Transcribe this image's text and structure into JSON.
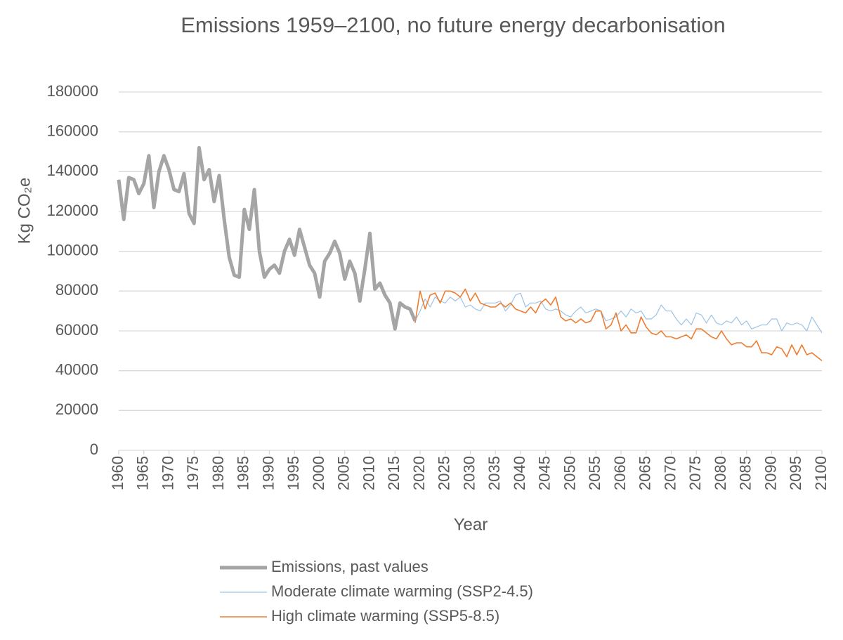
{
  "chart_data": {
    "type": "line",
    "title": "Emissions 1959–2100, no future energy decarbonisation",
    "x_label": "Year",
    "y_label": "Kg CO₂e",
    "x": [
      1960,
      1961,
      1962,
      1963,
      1964,
      1965,
      1966,
      1967,
      1968,
      1969,
      1970,
      1971,
      1972,
      1973,
      1974,
      1975,
      1976,
      1977,
      1978,
      1979,
      1980,
      1981,
      1982,
      1983,
      1984,
      1985,
      1986,
      1987,
      1988,
      1989,
      1990,
      1991,
      1992,
      1993,
      1994,
      1995,
      1996,
      1997,
      1998,
      1999,
      2000,
      2001,
      2002,
      2003,
      2004,
      2005,
      2006,
      2007,
      2008,
      2009,
      2010,
      2011,
      2012,
      2013,
      2014,
      2015,
      2016,
      2017,
      2018,
      2019,
      2020,
      2021,
      2022,
      2023,
      2024,
      2025,
      2026,
      2027,
      2028,
      2029,
      2030,
      2031,
      2032,
      2033,
      2034,
      2035,
      2036,
      2037,
      2038,
      2039,
      2040,
      2041,
      2042,
      2043,
      2044,
      2045,
      2046,
      2047,
      2048,
      2049,
      2050,
      2051,
      2052,
      2053,
      2054,
      2055,
      2056,
      2057,
      2058,
      2059,
      2060,
      2061,
      2062,
      2063,
      2064,
      2065,
      2066,
      2067,
      2068,
      2069,
      2070,
      2071,
      2072,
      2073,
      2074,
      2075,
      2076,
      2077,
      2078,
      2079,
      2080,
      2081,
      2082,
      2083,
      2084,
      2085,
      2086,
      2087,
      2088,
      2089,
      2090,
      2091,
      2092,
      2093,
      2094,
      2095,
      2096,
      2097,
      2098,
      2099,
      2100
    ],
    "xlim": [
      1960,
      2100
    ],
    "xticks": [
      1960,
      1965,
      1970,
      1975,
      1980,
      1985,
      1990,
      1995,
      2000,
      2005,
      2010,
      2015,
      2020,
      2025,
      2030,
      2035,
      2040,
      2045,
      2050,
      2055,
      2060,
      2065,
      2070,
      2075,
      2080,
      2085,
      2090,
      2095,
      2100
    ],
    "ylim": [
      0,
      180000
    ],
    "yticks": [
      0,
      20000,
      40000,
      60000,
      80000,
      100000,
      120000,
      140000,
      160000,
      180000
    ],
    "grid": true,
    "legend": "bottom",
    "series": [
      {
        "name": "Emissions, past values",
        "color": "#a5a5a5",
        "width": 5,
        "values": [
          136000,
          116000,
          137000,
          136000,
          129000,
          134000,
          148000,
          122000,
          140000,
          148000,
          141000,
          131000,
          130000,
          139000,
          119000,
          114000,
          152000,
          136000,
          141000,
          125000,
          138000,
          116000,
          97000,
          88000,
          87000,
          121000,
          111000,
          131000,
          100000,
          87000,
          91000,
          93000,
          89000,
          100000,
          106000,
          98000,
          111000,
          102000,
          93000,
          89000,
          77000,
          95000,
          99000,
          105000,
          99000,
          86000,
          95000,
          89000,
          75000,
          91000,
          109000,
          81000,
          84000,
          78000,
          74000,
          61000,
          74000,
          72000,
          71000,
          65000,
          null,
          null,
          null,
          null,
          null,
          null,
          null,
          null,
          null,
          null,
          null,
          null,
          null,
          null,
          null,
          null,
          null,
          null,
          null,
          null,
          null,
          null,
          null,
          null,
          null,
          null,
          null,
          null,
          null,
          null,
          null,
          null,
          null,
          null,
          null,
          null,
          null,
          null,
          null,
          null,
          null,
          null,
          null,
          null,
          null,
          null,
          null,
          null,
          null,
          null,
          null,
          null,
          null,
          null,
          null,
          null,
          null,
          null,
          null,
          null,
          null,
          null,
          null,
          null,
          null,
          null,
          null,
          null,
          null,
          null,
          null,
          null,
          null,
          null,
          null,
          null,
          null,
          null,
          null,
          null,
          null
        ]
      },
      {
        "name": "Moderate climate warming (SSP2-4.5)",
        "color": "#9dc3e6",
        "width": 1.2,
        "values": [
          null,
          null,
          null,
          null,
          null,
          null,
          null,
          null,
          null,
          null,
          null,
          null,
          null,
          null,
          null,
          null,
          null,
          null,
          null,
          null,
          null,
          null,
          null,
          null,
          null,
          null,
          null,
          null,
          null,
          null,
          null,
          null,
          null,
          null,
          null,
          null,
          null,
          null,
          null,
          null,
          null,
          null,
          null,
          null,
          null,
          null,
          null,
          null,
          null,
          null,
          null,
          null,
          null,
          null,
          null,
          null,
          null,
          null,
          null,
          65000,
          70000,
          76000,
          72000,
          77000,
          75000,
          74000,
          77000,
          75000,
          77000,
          72000,
          73000,
          71000,
          70000,
          74000,
          74000,
          74000,
          75000,
          70000,
          73000,
          78000,
          79000,
          72000,
          74000,
          74000,
          75000,
          71000,
          70000,
          71000,
          70000,
          68000,
          67000,
          70000,
          72000,
          69000,
          70000,
          71000,
          70000,
          65000,
          66000,
          67000,
          70000,
          67000,
          71000,
          69000,
          70000,
          66000,
          66000,
          68000,
          73000,
          70000,
          70000,
          66000,
          63000,
          66000,
          63000,
          69000,
          68000,
          64000,
          68000,
          64000,
          63000,
          65000,
          64000,
          67000,
          63000,
          65000,
          61000,
          62000,
          63000,
          63000,
          66000,
          66000,
          60000,
          64000,
          63000,
          64000,
          63000,
          60000,
          67000,
          63000,
          59000
        ]
      },
      {
        "name": "High climate warming (SSP5-8.5)",
        "color": "#ed7d31",
        "width": 1.6,
        "values": [
          null,
          null,
          null,
          null,
          null,
          null,
          null,
          null,
          null,
          null,
          null,
          null,
          null,
          null,
          null,
          null,
          null,
          null,
          null,
          null,
          null,
          null,
          null,
          null,
          null,
          null,
          null,
          null,
          null,
          null,
          null,
          null,
          null,
          null,
          null,
          null,
          null,
          null,
          null,
          null,
          null,
          null,
          null,
          null,
          null,
          null,
          null,
          null,
          null,
          null,
          null,
          null,
          null,
          null,
          null,
          null,
          null,
          null,
          null,
          64000,
          80000,
          71000,
          78000,
          79000,
          74000,
          80000,
          80000,
          79000,
          77000,
          81000,
          75000,
          79000,
          74000,
          73000,
          72000,
          72000,
          74000,
          72000,
          74000,
          71000,
          70000,
          69000,
          72000,
          69000,
          74000,
          76000,
          73000,
          77000,
          67000,
          65000,
          66000,
          64000,
          66000,
          64000,
          65000,
          70000,
          70000,
          61000,
          63000,
          69000,
          60000,
          63000,
          59000,
          59000,
          67000,
          62000,
          59000,
          58000,
          60000,
          57000,
          57000,
          56000,
          57000,
          58000,
          56000,
          61000,
          61000,
          59000,
          57000,
          56000,
          60000,
          56000,
          53000,
          54000,
          54000,
          52000,
          52000,
          55000,
          49000,
          49000,
          48000,
          52000,
          51000,
          47000,
          53000,
          48000,
          53000,
          48000,
          49000,
          47000,
          45000
        ]
      }
    ]
  }
}
